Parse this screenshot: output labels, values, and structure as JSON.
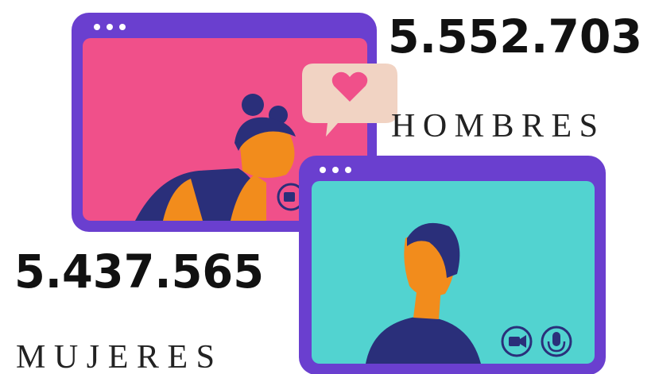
{
  "stats": [
    {
      "value": "5.552.703",
      "label": "HOMBRES"
    },
    {
      "value": "5.437.565",
      "label": "MUJERES"
    }
  ]
}
